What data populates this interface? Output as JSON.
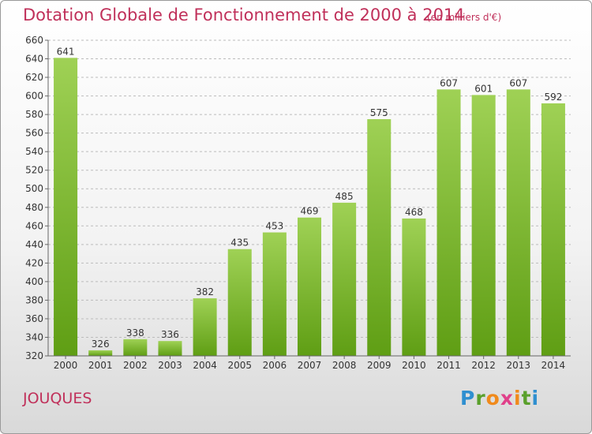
{
  "header": {
    "title": "Dotation Globale de Fonctionnement de 2000 à 2014",
    "unit": "(en milliers d'€)"
  },
  "footer": {
    "commune": "JOUQUES",
    "logo_text": "Proxiti"
  },
  "colors": {
    "title": "#c0305a",
    "bar_top": "#9fd155",
    "bar_bottom": "#5f9e14",
    "axis": "#666666",
    "grid": "#bbbbbb"
  },
  "chart_data": {
    "type": "bar",
    "title": "Dotation Globale de Fonctionnement de 2000 à 2014",
    "categories": [
      "2000",
      "2001",
      "2002",
      "2003",
      "2004",
      "2005",
      "2006",
      "2007",
      "2008",
      "2009",
      "2010",
      "2011",
      "2012",
      "2013",
      "2014"
    ],
    "values": [
      641,
      326,
      338,
      336,
      382,
      435,
      453,
      469,
      485,
      575,
      468,
      607,
      601,
      607,
      592
    ],
    "ylim": [
      320,
      660
    ],
    "yticks": [
      320,
      340,
      360,
      380,
      400,
      420,
      440,
      460,
      480,
      500,
      520,
      540,
      560,
      580,
      600,
      620,
      640,
      660
    ],
    "grid": "horizontal dashed",
    "data_labels": true
  }
}
